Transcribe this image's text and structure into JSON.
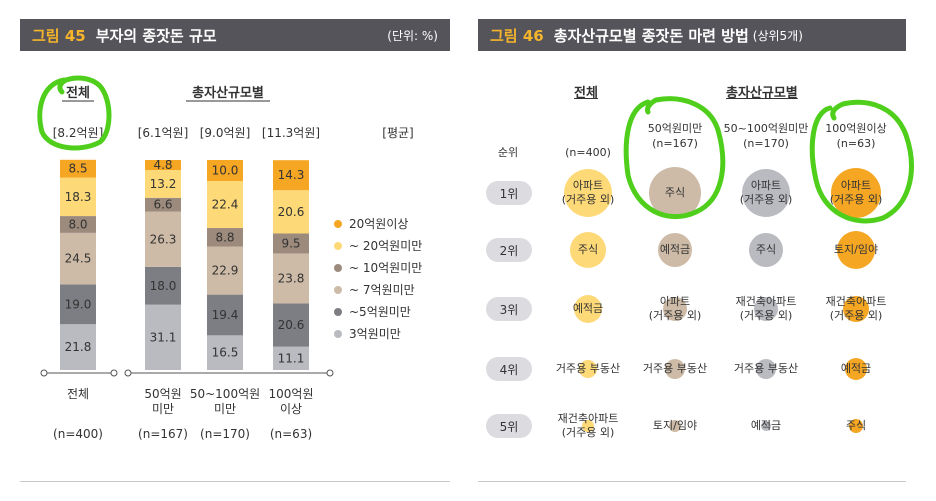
{
  "colors": {
    "c20plus": "#f5a623",
    "c10to20": "#fdd978",
    "c7to10": "#9c8a7c",
    "c5to7": "#cdbba7",
    "c3to5": "#7d7e84",
    "cunder3": "#b9bbc1",
    "highlight": "#4fcf1c",
    "header_bg": "#55545b",
    "accent": "#f6b52a"
  },
  "fig45": {
    "fig_no": "그림 45",
    "title": "부자의 종잣돈 규모",
    "unit": "(단위: %)",
    "group_total": "전체",
    "group_asset": "총자산규모별",
    "avg_label": "[평균]"
  },
  "fig46": {
    "fig_no": "그림 46",
    "title": "총자산규모별 종잣돈 마련 방법",
    "subtitle": "(상위5개)",
    "group_total": "전체",
    "group_asset": "총자산규모별",
    "rank_header": "순위",
    "columns": [
      {
        "name": "(n=400)"
      },
      {
        "name": "50억원미만",
        "n": "(n=167)"
      },
      {
        "name": "50~100억원미만",
        "n": "(n=170)"
      },
      {
        "name": "100억원이상",
        "n": "(n=63)"
      }
    ],
    "ranks": [
      "1위",
      "2위",
      "3위",
      "4위",
      "5위"
    ],
    "cells": [
      [
        {
          "t": "아파트\n(거주용 외)",
          "s": 24,
          "c": "#fdd978"
        },
        {
          "t": "주식",
          "s": 26,
          "c": "#cdbba7"
        },
        {
          "t": "아파트\n(거주용 외)",
          "s": 24,
          "c": "#b9bbc1"
        },
        {
          "t": "아파트\n(거주용 외)",
          "s": 25,
          "c": "#f5a623"
        }
      ],
      [
        {
          "t": "주식",
          "s": 18,
          "c": "#fdd978"
        },
        {
          "t": "예적금",
          "s": 17,
          "c": "#cdbba7"
        },
        {
          "t": "주식",
          "s": 17,
          "c": "#b9bbc1"
        },
        {
          "t": "토지/임야",
          "s": 19,
          "c": "#f5a623"
        }
      ],
      [
        {
          "t": "예적금",
          "s": 14,
          "c": "#fdd978"
        },
        {
          "t": "아파트\n(거주용 외)",
          "s": 12,
          "c": "#cdbba7"
        },
        {
          "t": "재건축아파트\n(거주용 외)",
          "s": 12,
          "c": "#b9bbc1"
        },
        {
          "t": "재건축아파트\n(거주용 외)",
          "s": 13,
          "c": "#f5a623"
        }
      ],
      [
        {
          "t": "거주용 부동산",
          "s": 9,
          "c": "#fdd978"
        },
        {
          "t": "거주용 부동산",
          "s": 10,
          "c": "#cdbba7"
        },
        {
          "t": "거주용 부동산",
          "s": 10,
          "c": "#b9bbc1"
        },
        {
          "t": "예적금",
          "s": 11,
          "c": "#f5a623"
        }
      ],
      [
        {
          "t": "재건축아파트\n(거주용 외)",
          "s": 6,
          "c": "#fdd978"
        },
        {
          "t": "토지/임야",
          "s": 6,
          "c": "#cdbba7"
        },
        {
          "t": "예적금",
          "s": 5,
          "c": "#b9bbc1"
        },
        {
          "t": "주식",
          "s": 7,
          "c": "#f5a623"
        }
      ]
    ]
  },
  "chart_data": [
    {
      "type": "bar",
      "stacked": true,
      "categories": [
        "전체",
        "50억원\n미만",
        "50~100억원\n미만",
        "100억원\n이상"
      ],
      "n_labels": [
        "(n=400)",
        "(n=167)",
        "(n=170)",
        "(n=63)"
      ],
      "averages": [
        "[8.2억원]",
        "[6.1억원]",
        "[9.0억원]",
        "[11.3억원]"
      ],
      "series": [
        {
          "name": "3억원미만",
          "values": [
            21.8,
            31.1,
            16.5,
            11.1
          ]
        },
        {
          "name": "~5억원미만",
          "values": [
            19.0,
            18.0,
            19.4,
            20.6
          ]
        },
        {
          "name": "~ 7억원미만",
          "values": [
            24.5,
            26.3,
            22.9,
            23.8
          ]
        },
        {
          "name": "~ 10억원미만",
          "values": [
            8.0,
            6.6,
            8.8,
            9.5
          ]
        },
        {
          "name": "~ 20억원미만",
          "values": [
            18.3,
            13.2,
            22.4,
            20.6
          ]
        },
        {
          "name": "20억원이상",
          "values": [
            8.5,
            4.8,
            10.0,
            14.3
          ]
        }
      ],
      "legend_order": [
        "20억원이상",
        "~ 20억원미만",
        "~ 10억원미만",
        "~ 7억원미만",
        "~5억원미만",
        "3억원미만"
      ],
      "ylim": [
        0,
        100
      ]
    },
    {
      "type": "table",
      "note": "bubble ranking table: ranks 1위–5위 by column, shown in fig46.cells"
    }
  ]
}
